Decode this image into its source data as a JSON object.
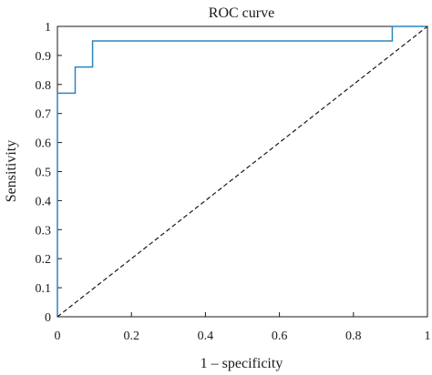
{
  "chart_data": {
    "type": "line",
    "title": "ROC curve",
    "xlabel": "1 – specificity",
    "ylabel": "Sensitivity",
    "xlim": [
      0,
      1
    ],
    "ylim": [
      0,
      1
    ],
    "x_ticks": [
      0,
      0.2,
      0.4,
      0.6,
      0.8,
      1
    ],
    "x_tick_labels": [
      "0",
      "0.2",
      "0.4",
      "0.6",
      "0.8",
      "1"
    ],
    "y_ticks": [
      0,
      0.1,
      0.2,
      0.3,
      0.4,
      0.5,
      0.6,
      0.7,
      0.8,
      0.9,
      1
    ],
    "y_tick_labels": [
      "0",
      "0.1",
      "0.2",
      "0.3",
      "0.4",
      "0.5",
      "0.6",
      "0.7",
      "0.8",
      "0.9",
      "1"
    ],
    "grid": false,
    "series": [
      {
        "color": "#2a86c4",
        "style": "solid",
        "x": [
          0,
          0,
          0.048,
          0.048,
          0.095,
          0.095,
          0.905,
          0.905,
          1
        ],
        "y": [
          0,
          0.77,
          0.77,
          0.86,
          0.86,
          0.95,
          0.95,
          1,
          1
        ]
      },
      {
        "color": "#1a1a1a",
        "style": "dashed",
        "x": [
          0,
          1
        ],
        "y": [
          0,
          1
        ]
      }
    ]
  }
}
